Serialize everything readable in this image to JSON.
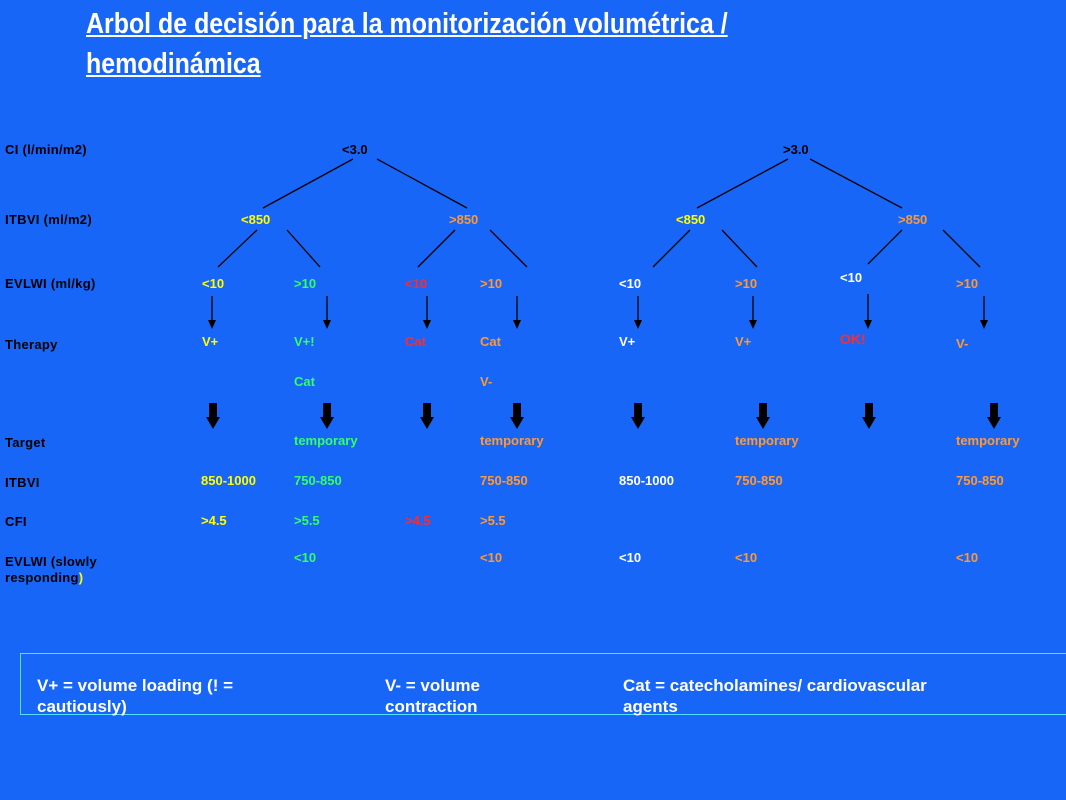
{
  "title": {
    "line1": "Arbol de decisión para la monitorización volumétrica /",
    "line2": "hemodinámica"
  },
  "row_labels": {
    "ci": "CI (l/min/m2)",
    "itbvi": "ITBVI (ml/m2)",
    "evlwi": "EVLWI  (ml/kg)",
    "therapy": "Therapy",
    "target": "Target",
    "target_itbvi": "ITBVI",
    "target_cfi": "CFI",
    "target_evlwi_1": "EVLWI (slowly",
    "target_evlwi_2a": "responding",
    "target_evlwi_2b": ")"
  },
  "tree": {
    "ci_low": "<3.0",
    "ci_high": ">3.0",
    "itbvi": [
      {
        "label": "<850",
        "color": "#ffff00"
      },
      {
        "label": ">850",
        "color": "#ff9933"
      },
      {
        "label": "<850",
        "color": "#ffff00"
      },
      {
        "label": ">850",
        "color": "#ff9933"
      }
    ],
    "leaves": [
      {
        "evlwi": "<10",
        "evlwi_color": "#ffff00",
        "therapy": "V+",
        "therapy_color": "#ffff00",
        "therapy2": "",
        "target_label": "",
        "itbvi": "850-1000",
        "itbvi_color": "#ffff00",
        "cfi": ">4.5",
        "cfi_color": "#ffff00",
        "evlwi_target": ""
      },
      {
        "evlwi": ">10",
        "evlwi_color": "#33ff66",
        "therapy": "V+!",
        "therapy_color": "#33ff66",
        "therapy2": "Cat",
        "target_label": "temporary",
        "itbvi": "750-850",
        "itbvi_color": "#33ff66",
        "cfi": ">5.5",
        "cfi_color": "#33ff66",
        "evlwi_target": "<10"
      },
      {
        "evlwi": "<10",
        "evlwi_color": "#ff2a2a",
        "therapy": "Cat",
        "therapy_color": "#ff2a2a",
        "therapy2": "",
        "target_label": "",
        "itbvi": "",
        "itbvi_color": "#ff9933",
        "cfi": ">4.5",
        "cfi_color": "#ff2a2a",
        "evlwi_target": ""
      },
      {
        "evlwi": ">10",
        "evlwi_color": "#ff9933",
        "therapy": "Cat",
        "therapy_color": "#ff9933",
        "therapy2": "V-",
        "target_label": "temporary",
        "itbvi": "750-850",
        "itbvi_color": "#ff9933",
        "cfi": ">5.5",
        "cfi_color": "#ff9933",
        "evlwi_target": "<10"
      },
      {
        "evlwi": "<10",
        "evlwi_color": "#ffffff",
        "therapy": "V+",
        "therapy_color": "#ffffff",
        "therapy2": "",
        "target_label": "",
        "itbvi": "850-1000",
        "itbvi_color": "#ffffff",
        "cfi": "",
        "cfi_color": "#ffffff",
        "evlwi_target": "<10"
      },
      {
        "evlwi": ">10",
        "evlwi_color": "#ff9933",
        "therapy": "V+",
        "therapy_color": "#ff9933",
        "therapy2": "",
        "target_label": "temporary",
        "itbvi": "750-850",
        "itbvi_color": "#ff9933",
        "cfi": "",
        "cfi_color": "#ff9933",
        "evlwi_target": "<10"
      },
      {
        "evlwi": "<10",
        "evlwi_color": "#ffffff",
        "therapy": "OK!",
        "therapy_color": "#ff2a2a",
        "therapy2": "",
        "target_label": "",
        "itbvi": "",
        "itbvi_color": "#ffffff",
        "cfi": "",
        "cfi_color": "#ffffff",
        "evlwi_target": ""
      },
      {
        "evlwi": ">10",
        "evlwi_color": "#ff9933",
        "therapy": "V-",
        "therapy_color": "#ff9933",
        "therapy2": "",
        "target_label": "temporary",
        "itbvi": "750-850",
        "itbvi_color": "#ff9933",
        "cfi": "",
        "cfi_color": "#ff9933",
        "evlwi_target": "<10"
      }
    ]
  },
  "legend": {
    "vplus_1": "V+ = volume loading (! =",
    "vplus_2": "cautiously)",
    "vminus_1": "V- = volume",
    "vminus_2": "contraction",
    "cat_1": "Cat = catecholamines/ cardiovascular",
    "cat_2": "agents"
  }
}
